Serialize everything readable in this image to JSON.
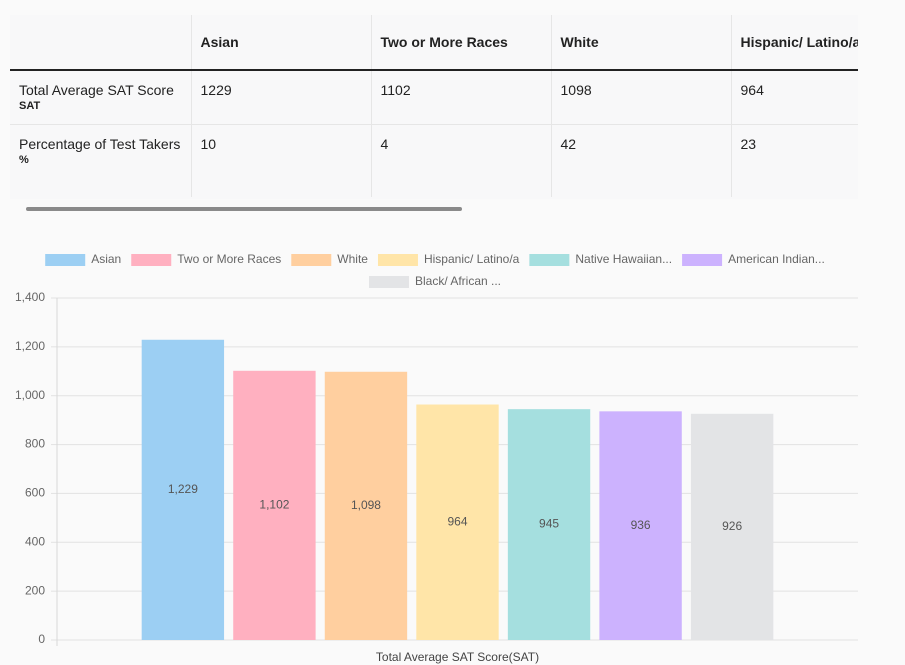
{
  "table": {
    "header": [
      "Asian",
      "Two or More Races",
      "White",
      "Hispanic/ Latino/a"
    ],
    "rows": [
      {
        "label": "Total Average SAT Score",
        "unit": "SAT",
        "cells": [
          "1229",
          "1102",
          "1098",
          "964"
        ]
      },
      {
        "label": "Percentage of Test Takers",
        "unit": "%",
        "cells": [
          "10",
          "4",
          "42",
          "23"
        ]
      }
    ]
  },
  "chart_data": {
    "type": "bar",
    "categories": [
      "Total Average SAT Score(SAT)"
    ],
    "series": [
      {
        "name": "Asian",
        "color": "#9ccff3",
        "values": [
          1229
        ],
        "value_labels": [
          "1,229"
        ]
      },
      {
        "name": "Two or More Races",
        "color": "#ffb0c0",
        "values": [
          1102
        ],
        "value_labels": [
          "1,102"
        ]
      },
      {
        "name": "White",
        "color": "#ffcf9f",
        "values": [
          1098
        ],
        "value_labels": [
          "1,098"
        ]
      },
      {
        "name": "Hispanic/ Latino/a",
        "color": "#ffe5a8",
        "values": [
          964
        ]
      },
      {
        "name": "Native Hawaiian...",
        "color": "#a5dfdf",
        "values": [
          945
        ]
      },
      {
        "name": "American Indian...",
        "color": "#ccb2fe",
        "values": [
          936
        ]
      },
      {
        "name": "Black/ African ...",
        "color": "#e3e4e6",
        "values": [
          926
        ]
      }
    ],
    "ylim": [
      0,
      1400
    ],
    "yticks": [
      0,
      200,
      400,
      600,
      800,
      {
        "value": 1000,
        "label": "1,000"
      },
      {
        "value": 1200,
        "label": "1,200"
      },
      {
        "value": 1400,
        "label": "1,400"
      }
    ],
    "grid": true,
    "legend": "top"
  }
}
